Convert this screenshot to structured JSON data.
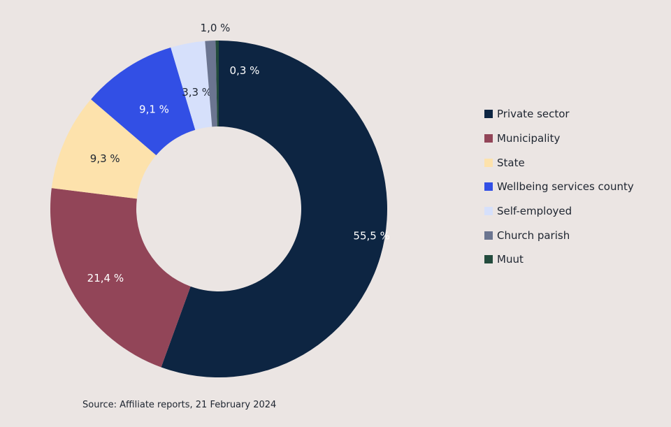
{
  "chart_data": {
    "type": "pie",
    "donut": true,
    "slices": [
      {
        "label": "Private sector",
        "value": 55.5,
        "display": "55,5 %",
        "color": "#0d2542",
        "text_color": "#ffffff"
      },
      {
        "label": "Municipality",
        "value": 21.4,
        "display": "21,4 %",
        "color": "#924558",
        "text_color": "#ffffff"
      },
      {
        "label": "State",
        "value": 9.3,
        "display": "9,3 %",
        "color": "#fde2ac",
        "text_color": "#1e2530"
      },
      {
        "label": "Wellbeing services county",
        "value": 9.1,
        "display": "9,1 %",
        "color": "#324fe5",
        "text_color": "#ffffff"
      },
      {
        "label": "Self-employed",
        "value": 3.3,
        "display": "3,3 %",
        "color": "#d6e0fb",
        "text_color": "#1e2530"
      },
      {
        "label": "Church parish",
        "value": 1.0,
        "display": "1,0 %",
        "color": "#6b7590",
        "text_color": "#1e2530"
      },
      {
        "label": "Muut",
        "value": 0.3,
        "display": "0,3 %",
        "color": "#234b3d",
        "text_color": "#ffffff"
      }
    ],
    "legend_position": "right"
  },
  "source": "Source: Affiliate reports, 21 February 2024"
}
